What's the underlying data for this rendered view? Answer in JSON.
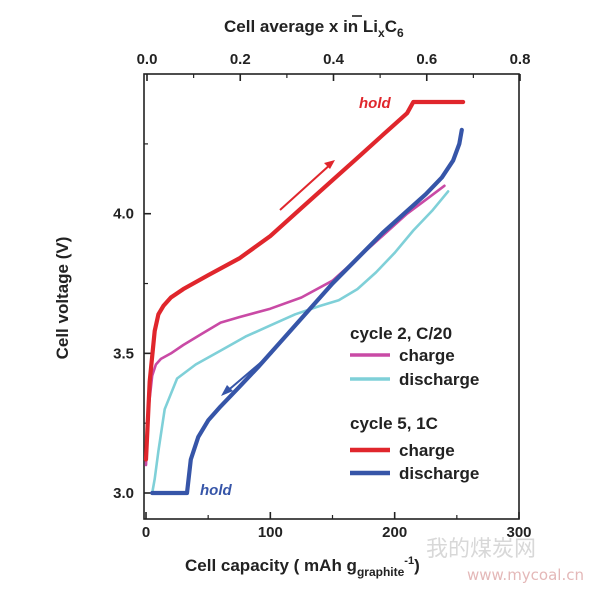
{
  "chart_data": {
    "type": "line",
    "title": "",
    "xlabel": "Cell capacity ( mAh g",
    "xlabel_sub": "graphite",
    "xlabel_sup": "-1",
    "xlabel_close": ")",
    "ylabel": "Cell voltage (V)",
    "top_xlabel": "Cell average x in Li",
    "top_xlabel_x": "x",
    "top_xlabel_sub_x": "x",
    "top_xlabel_c": "C",
    "top_xlabel_sub_6": "6",
    "xlim": [
      0,
      300
    ],
    "ylim": [
      3.0,
      4.4
    ],
    "top_xlim": [
      0,
      0.8
    ],
    "x_ticks": [
      0,
      100,
      200,
      300
    ],
    "x_tick_labels": [
      "0",
      "100",
      "200",
      "300"
    ],
    "y_ticks": [
      3.0,
      3.5,
      4.0
    ],
    "y_tick_labels": [
      "3.0",
      "3.5",
      "4.0"
    ],
    "top_ticks": [
      0.0,
      0.2,
      0.4,
      0.6,
      0.8
    ],
    "top_tick_labels": [
      "0.0",
      "0.2",
      "0.4",
      "0.6",
      "0.8"
    ],
    "grid": false,
    "legend_groups": [
      {
        "title": "cycle 2, C/20",
        "entries": [
          {
            "label": "charge",
            "color": "#c94aa5"
          },
          {
            "label": "discharge",
            "color": "#7fd0d8"
          }
        ]
      },
      {
        "title": "cycle 5, 1C",
        "entries": [
          {
            "label": "charge",
            "color": "#e0262c"
          },
          {
            "label": "discharge",
            "color": "#3655a8"
          }
        ]
      }
    ],
    "annotations": [
      {
        "text": "hold",
        "color": "#e0262c"
      },
      {
        "text": "hold",
        "color": "#3655a8"
      }
    ],
    "series": [
      {
        "name": "cycle 2, C/20 charge",
        "color": "#c94aa5",
        "x": [
          0,
          2,
          5,
          8,
          12,
          20,
          30,
          45,
          60,
          75,
          100,
          125,
          150,
          170,
          190,
          210,
          225,
          240
        ],
        "y": [
          3.1,
          3.3,
          3.42,
          3.46,
          3.48,
          3.5,
          3.53,
          3.57,
          3.61,
          3.63,
          3.66,
          3.7,
          3.76,
          3.84,
          3.92,
          4.0,
          4.05,
          4.1
        ]
      },
      {
        "name": "cycle 2, C/20 discharge",
        "color": "#7fd0d8",
        "x": [
          243,
          230,
          215,
          200,
          185,
          170,
          155,
          140,
          120,
          100,
          80,
          60,
          40,
          25,
          15,
          10,
          7,
          5
        ],
        "y": [
          4.08,
          4.01,
          3.94,
          3.86,
          3.79,
          3.73,
          3.69,
          3.67,
          3.64,
          3.6,
          3.56,
          3.51,
          3.46,
          3.41,
          3.3,
          3.15,
          3.05,
          3.0
        ]
      },
      {
        "name": "cycle 5, 1C charge",
        "color": "#e0262c",
        "x": [
          0,
          3,
          7,
          10,
          14,
          20,
          30,
          50,
          75,
          100,
          125,
          150,
          170,
          190,
          210,
          215,
          255
        ],
        "y": [
          3.12,
          3.4,
          3.58,
          3.64,
          3.67,
          3.7,
          3.73,
          3.78,
          3.84,
          3.92,
          4.02,
          4.12,
          4.2,
          4.28,
          4.36,
          4.4,
          4.4
        ]
      },
      {
        "name": "cycle 5, 1C discharge",
        "color": "#3655a8",
        "x": [
          5,
          33,
          36,
          42,
          50,
          60,
          75,
          90,
          110,
          130,
          150,
          170,
          190,
          210,
          225,
          238,
          247,
          252,
          254
        ],
        "y": [
          3.0,
          3.0,
          3.12,
          3.2,
          3.26,
          3.31,
          3.38,
          3.45,
          3.55,
          3.65,
          3.75,
          3.84,
          3.93,
          4.01,
          4.07,
          4.13,
          4.19,
          4.25,
          4.3
        ]
      }
    ]
  },
  "watermark": {
    "cn": "我的煤炭网",
    "url": "www.mycoal.cn"
  }
}
